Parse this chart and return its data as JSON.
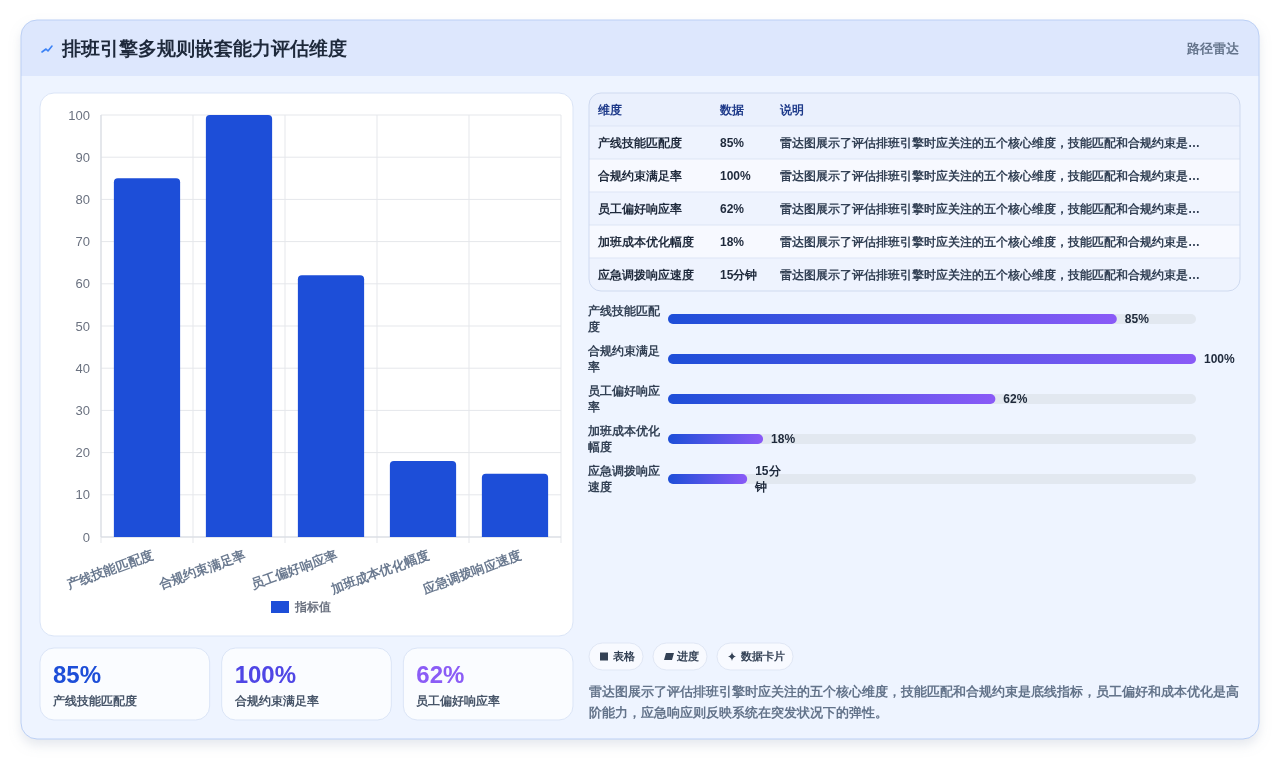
{
  "chart_data": [
    {
      "type": "other",
      "title": "排班引擎多规则嵌套能力评估维度",
      "subtitle": "路径雷达"
    },
    {
      "type": "bar",
      "categories": [
        "产线技能匹配度",
        "合规约束满足率",
        "员工偏好响应率",
        "加班成本优化幅度",
        "应急调拨响应速度"
      ],
      "series": [
        {
          "name": "指标值",
          "color": "#1d4ed8",
          "values": [
            85,
            100,
            62,
            18,
            15
          ]
        }
      ],
      "ylim": [
        0,
        100
      ],
      "yticks": [
        0,
        10,
        20,
        30,
        40,
        50,
        60,
        70,
        80,
        90,
        100
      ],
      "grid": true,
      "legend": "bottom"
    },
    {
      "type": "other",
      "annotations": [
        "维度",
        "数据",
        "说明",
        "产线技能匹配度",
        "85%",
        "雷达图展示了评估排班引擎时应关注的五个核心维度，技能匹配和合规约束是…",
        "合规约束满足率",
        "100%",
        "雷达图展示了评估排班引擎时应关注的五个核心维度，技能匹配和合规约束是…",
        "员工偏好响应率",
        "62%",
        "雷达图展示了评估排班引擎时应关注的五个核心维度，技能匹配和合规约束是…",
        "加班成本优化幅度",
        "18%",
        "雷达图展示了评估排班引擎时应关注的五个核心维度，技能匹配和合规约束是…",
        "应急调拨响应速度",
        "15分钟",
        "雷达图展示了评估排班引擎时应关注的五个核心维度，技能匹配和合规约束是…"
      ]
    },
    {
      "type": "bar",
      "orientation": "horizontal",
      "categories": [
        "产线技能匹配度",
        "合规约束满足率",
        "员工偏好响应率",
        "加班成本优化幅度",
        "应急调拨响应速度"
      ],
      "values": [
        85,
        100,
        62,
        18,
        15
      ],
      "value_labels": [
        "85%",
        "100%",
        "62%",
        "18%",
        "15分钟"
      ],
      "color": "#1d4ed8",
      "xlim": [
        0,
        100
      ],
      "tick_labels": "y"
    },
    {
      "type": "other",
      "categories": [
        "产线技能匹配度",
        "合规约束满足率",
        "员工偏好响应率"
      ],
      "value_labels": [
        "85%",
        "100%",
        "62%"
      ]
    },
    {
      "type": "other",
      "categories": [
        "表格",
        "进度",
        "数据卡片"
      ],
      "annotations": [
        "雷达图展示了评估排班引擎时应关注的五个核心维度，技能匹配和合规约束是底线指标，员工偏好和成本优化是高阶能力，应急响应则反映系统在突发状况下的弹性。"
      ]
    }
  ]
}
